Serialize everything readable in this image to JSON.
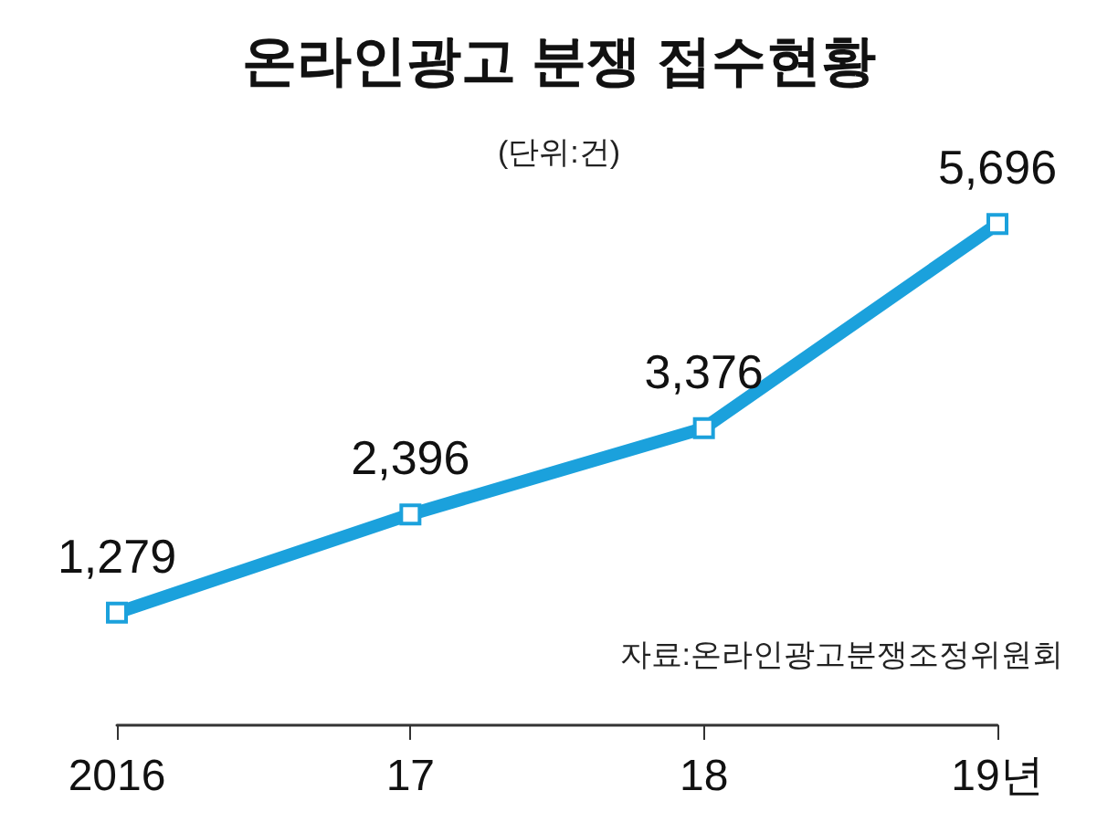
{
  "chart_data": {
    "type": "line",
    "title": "온라인광고 분쟁 접수현황",
    "subtitle": "(단위:건)",
    "annotations": [
      "자료:온라인광고분쟁조정위원회"
    ],
    "categories": [
      "2016",
      "17",
      "18",
      "19년"
    ],
    "series": [
      {
        "color": "#1ba1dc",
        "values": [
          1279,
          2396,
          3376,
          5696
        ],
        "value_labels": [
          "1,279",
          "2,396",
          "3,376",
          "5,696"
        ]
      }
    ],
    "marker": "square",
    "tick_labels": "x"
  }
}
